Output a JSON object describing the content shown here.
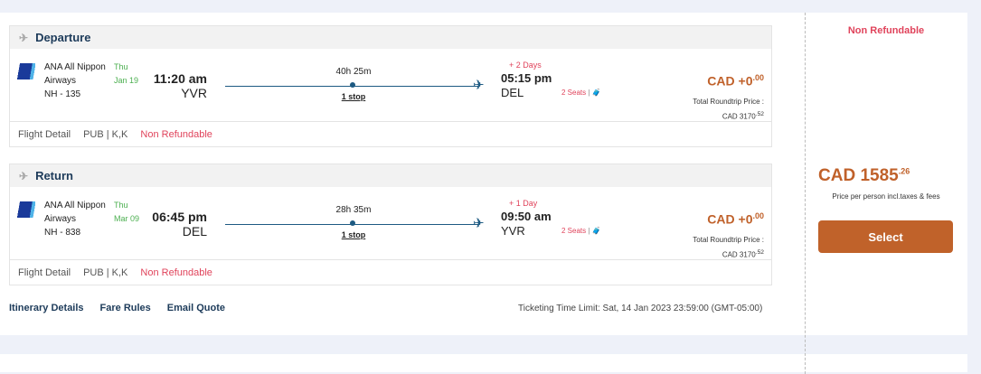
{
  "segments": [
    {
      "title": "Departure",
      "airline": "ANA All Nippon Airways",
      "flight": "NH - 135",
      "day": "Thu",
      "date": "Jan 19",
      "dep_time": "11:20 am",
      "dep_code": "YVR",
      "duration": "40h 25m",
      "stops": "1 stop",
      "day_offset": "+ 2 Days",
      "arr_time": "05:15 pm",
      "arr_code": "DEL",
      "seats": "2 Seats",
      "price_main": "CAD +0",
      "price_dec": ".00",
      "total_label": "Total Roundtrip Price :",
      "total_main": "CAD 3170",
      "total_dec": ".52",
      "flight_detail": "Flight Detail",
      "fare_class": "PUB | K,K",
      "refund": "Non Refundable"
    },
    {
      "title": "Return",
      "airline": "ANA All Nippon Airways",
      "flight": "NH - 838",
      "day": "Thu",
      "date": "Mar 09",
      "dep_time": "06:45 pm",
      "dep_code": "DEL",
      "duration": "28h 35m",
      "stops": "1 stop",
      "day_offset": "+ 1 Day",
      "arr_time": "09:50 am",
      "arr_code": "YVR",
      "seats": "2 Seats",
      "price_main": "CAD +0",
      "price_dec": ".00",
      "total_label": "Total Roundtrip Price :",
      "total_main": "CAD 3170",
      "total_dec": ".52",
      "flight_detail": "Flight Detail",
      "fare_class": "PUB | K,K",
      "refund": "Non Refundable"
    }
  ],
  "links": {
    "itinerary": "Itinerary Details",
    "fare_rules": "Fare Rules",
    "email": "Email Quote"
  },
  "ticketing_limit": "Ticketing Time Limit: Sat, 14 Jan 2023 23:59:00 (GMT-05:00)",
  "side": {
    "refund": "Non Refundable",
    "price_main": "CAD 1585",
    "price_dec": ".26",
    "price_note": "Price per person incl.taxes & fees",
    "select": "Select"
  },
  "colors": {
    "accent": "#c0622a",
    "nonrefundable": "#e0435b",
    "navy": "#1d3b5a"
  }
}
